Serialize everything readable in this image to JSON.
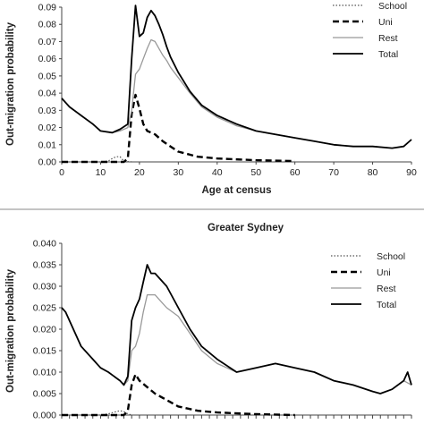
{
  "chart_data": [
    {
      "type": "line",
      "title": "",
      "xlabel": "Age at census",
      "ylabel": "Out-migration probability",
      "xlim": [
        0,
        90
      ],
      "ylim": [
        0,
        0.09
      ],
      "xticks": [
        "0",
        "10",
        "20",
        "30",
        "40",
        "50",
        "60",
        "70",
        "80",
        "90"
      ],
      "yticks": [
        "0.00",
        "0.01",
        "0.02",
        "0.03",
        "0.04",
        "0.05",
        "0.06",
        "0.07",
        "0.08",
        "0.09"
      ],
      "legend": "top-right",
      "grid": false,
      "series": [
        {
          "name": "School",
          "style": "dotted",
          "color": "#555555",
          "x": [
            0,
            10,
            12,
            13,
            14,
            15,
            16,
            17,
            18
          ],
          "y": [
            0,
            0,
            0.0005,
            0.002,
            0.003,
            0.003,
            0.0005,
            0.0002,
            0
          ]
        },
        {
          "name": "Uni",
          "style": "dashed",
          "color": "#000000",
          "x": [
            0,
            16,
            17,
            18,
            19,
            20,
            21,
            22,
            24,
            26,
            28,
            30,
            35,
            40,
            50,
            60
          ],
          "y": [
            0,
            0,
            0.002,
            0.028,
            0.039,
            0.031,
            0.022,
            0.018,
            0.016,
            0.012,
            0.009,
            0.006,
            0.003,
            0.002,
            0.001,
            0.0005
          ]
        },
        {
          "name": "Rest",
          "style": "solid",
          "color": "#999999",
          "x": [
            0,
            2,
            5,
            8,
            10,
            13,
            15,
            17,
            18,
            19,
            20,
            21,
            22,
            23,
            24,
            25,
            26,
            27,
            28,
            30,
            33,
            36,
            40,
            45,
            50,
            55,
            60,
            65,
            70,
            75,
            80,
            85,
            88,
            90
          ],
          "y": [
            0.037,
            0.032,
            0.027,
            0.022,
            0.018,
            0.017,
            0.018,
            0.02,
            0.03,
            0.051,
            0.054,
            0.06,
            0.066,
            0.071,
            0.07,
            0.066,
            0.062,
            0.059,
            0.055,
            0.049,
            0.04,
            0.032,
            0.026,
            0.021,
            0.018,
            0.016,
            0.014,
            0.012,
            0.01,
            0.009,
            0.009,
            0.008,
            0.009,
            0.013
          ]
        },
        {
          "name": "Total",
          "style": "solid",
          "color": "#000000",
          "x": [
            0,
            2,
            5,
            8,
            10,
            13,
            15,
            17,
            18,
            19,
            20,
            21,
            22,
            23,
            24,
            25,
            26,
            27,
            28,
            30,
            33,
            36,
            40,
            45,
            50,
            55,
            60,
            65,
            70,
            75,
            80,
            85,
            88,
            90
          ],
          "y": [
            0.037,
            0.032,
            0.027,
            0.022,
            0.018,
            0.017,
            0.019,
            0.022,
            0.06,
            0.091,
            0.073,
            0.075,
            0.084,
            0.088,
            0.085,
            0.08,
            0.074,
            0.067,
            0.061,
            0.052,
            0.041,
            0.033,
            0.027,
            0.022,
            0.018,
            0.016,
            0.014,
            0.012,
            0.01,
            0.009,
            0.009,
            0.008,
            0.009,
            0.013
          ]
        }
      ]
    },
    {
      "type": "line",
      "title": "Greater Sydney",
      "xlabel": "",
      "ylabel": "Out-migration probability",
      "xlim": [
        0,
        90
      ],
      "ylim": [
        0,
        0.04
      ],
      "xticks": [],
      "yticks": [
        "0.000",
        "0.005",
        "0.010",
        "0.015",
        "0.020",
        "0.025",
        "0.030",
        "0.035",
        "0.040"
      ],
      "legend": "top-right",
      "grid": false,
      "series": [
        {
          "name": "School",
          "style": "dotted",
          "color": "#555555",
          "x": [
            0,
            10,
            12,
            14,
            15,
            16,
            17,
            18
          ],
          "y": [
            0,
            0,
            0.0003,
            0.0008,
            0.001,
            0.0008,
            0.0003,
            0
          ]
        },
        {
          "name": "Uni",
          "style": "dashed",
          "color": "#000000",
          "x": [
            0,
            16,
            17,
            18,
            19,
            20,
            22,
            24,
            26,
            28,
            30,
            35,
            40,
            50,
            60
          ],
          "y": [
            0,
            0,
            0.001,
            0.007,
            0.0095,
            0.008,
            0.0065,
            0.005,
            0.004,
            0.003,
            0.002,
            0.001,
            0.0006,
            0.0002,
            0
          ]
        },
        {
          "name": "Rest",
          "style": "solid",
          "color": "#999999",
          "x": [
            0,
            1,
            3,
            5,
            8,
            10,
            12,
            15,
            16,
            17,
            18,
            19,
            20,
            21,
            22,
            23,
            24,
            25,
            27,
            30,
            33,
            36,
            40,
            45,
            50,
            55,
            60,
            65,
            70,
            75,
            80,
            82,
            85,
            88,
            90
          ],
          "y": [
            0.025,
            0.024,
            0.02,
            0.016,
            0.013,
            0.011,
            0.01,
            0.008,
            0.007,
            0.008,
            0.015,
            0.016,
            0.019,
            0.024,
            0.028,
            0.028,
            0.028,
            0.027,
            0.025,
            0.023,
            0.019,
            0.015,
            0.012,
            0.01,
            0.011,
            0.012,
            0.011,
            0.01,
            0.008,
            0.007,
            0.0055,
            0.005,
            0.006,
            0.008,
            0.007
          ]
        },
        {
          "name": "Total",
          "style": "solid",
          "color": "#000000",
          "x": [
            0,
            1,
            3,
            5,
            8,
            10,
            12,
            15,
            16,
            17,
            18,
            19,
            20,
            21,
            22,
            23,
            24,
            25,
            27,
            30,
            33,
            36,
            40,
            45,
            50,
            55,
            60,
            65,
            70,
            75,
            80,
            82,
            85,
            88,
            89,
            90
          ],
          "y": [
            0.025,
            0.024,
            0.02,
            0.016,
            0.013,
            0.011,
            0.01,
            0.008,
            0.007,
            0.009,
            0.022,
            0.025,
            0.027,
            0.031,
            0.035,
            0.033,
            0.033,
            0.032,
            0.03,
            0.025,
            0.02,
            0.016,
            0.013,
            0.01,
            0.011,
            0.012,
            0.011,
            0.01,
            0.008,
            0.007,
            0.0055,
            0.005,
            0.006,
            0.008,
            0.01,
            0.007
          ]
        }
      ]
    }
  ]
}
